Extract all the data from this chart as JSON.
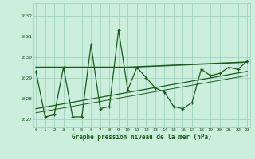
{
  "x": [
    0,
    1,
    2,
    3,
    4,
    5,
    6,
    7,
    8,
    9,
    10,
    11,
    12,
    13,
    14,
    15,
    16,
    17,
    18,
    19,
    20,
    21,
    22,
    23
  ],
  "y_main": [
    1029.3,
    1027.1,
    1027.2,
    1029.5,
    1027.1,
    1027.1,
    1030.6,
    1027.5,
    1027.6,
    1031.3,
    1028.4,
    1029.5,
    1029.0,
    1028.5,
    1028.3,
    1027.6,
    1027.5,
    1027.8,
    1029.4,
    1029.1,
    1029.2,
    1029.5,
    1029.4,
    1029.8
  ],
  "trend1_x": [
    0,
    10,
    23
  ],
  "trend1_y": [
    1029.5,
    1029.5,
    1029.75
  ],
  "trend2_x": [
    0,
    23
  ],
  "trend2_y": [
    1027.5,
    1029.3
  ],
  "trend3_x": [
    0,
    23
  ],
  "trend3_y": [
    1027.3,
    1029.1
  ],
  "ylim": [
    1026.6,
    1032.6
  ],
  "yticks": [
    1027,
    1028,
    1029,
    1030,
    1031,
    1032
  ],
  "xticks": [
    0,
    1,
    2,
    3,
    4,
    5,
    6,
    7,
    8,
    9,
    10,
    11,
    12,
    13,
    14,
    15,
    16,
    17,
    18,
    19,
    20,
    21,
    22,
    23
  ],
  "xlabel": "Graphe pression niveau de la mer (hPa)",
  "line_color": "#1a5c1a",
  "bg_color": "#cceedd",
  "grid_color": "#99ccbb",
  "text_color": "#1a5c1a"
}
